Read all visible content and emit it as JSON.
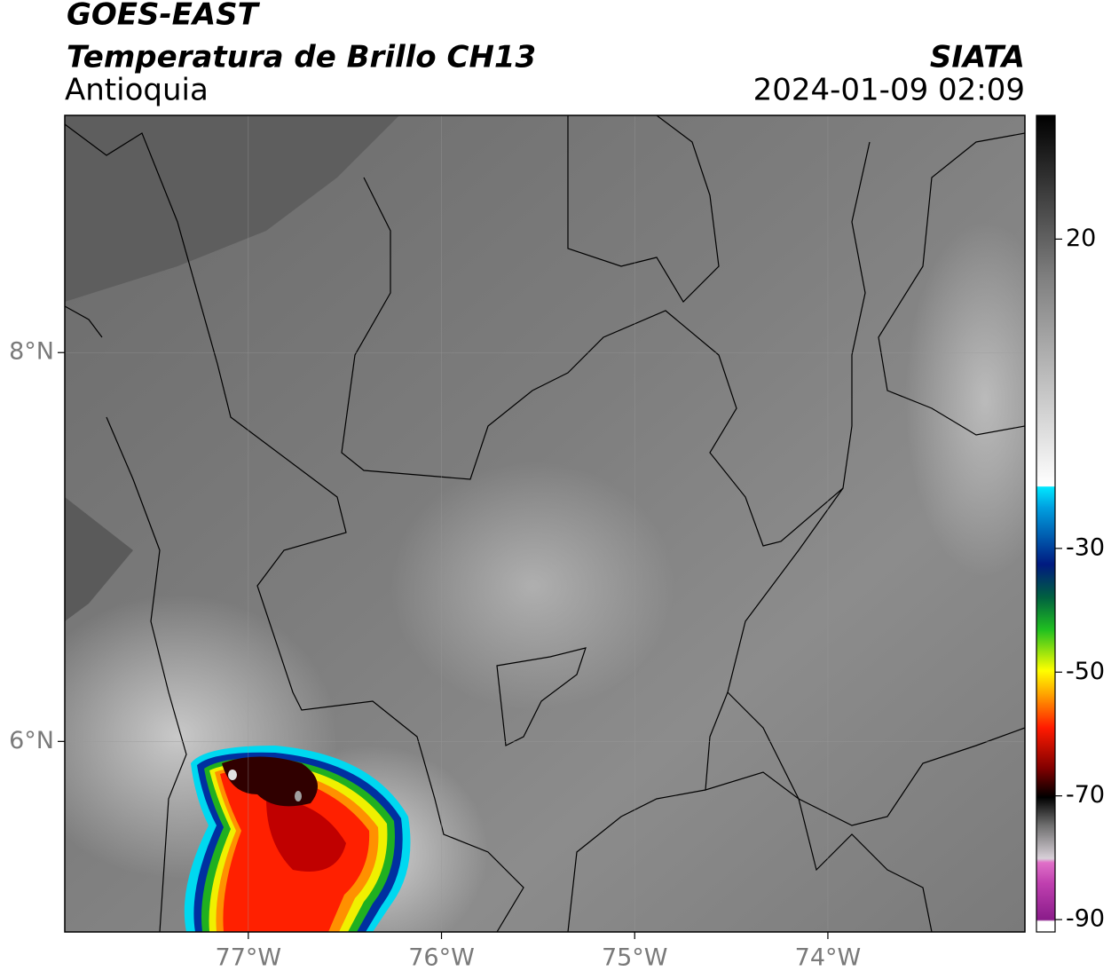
{
  "header": {
    "title": "GOES-EAST",
    "subtitle": "Temperatura de Brillo CH13",
    "region": "Antioquia",
    "source": "SIATA",
    "datetime": "2024-01-09 02:09"
  },
  "map": {
    "lon_range": [
      -77.95,
      -72.98
    ],
    "lat_range": [
      5.02,
      9.22
    ],
    "lon_ticks": [
      {
        "value": -77,
        "label": "77°W"
      },
      {
        "value": -76,
        "label": "76°W"
      },
      {
        "value": -75,
        "label": "75°W"
      },
      {
        "value": -74,
        "label": "74°W"
      }
    ],
    "lat_ticks": [
      {
        "value": 8,
        "label": "8°N"
      },
      {
        "value": 6,
        "label": "6°N"
      }
    ]
  },
  "colorbar": {
    "range": [
      -92,
      40
    ],
    "ticks": [
      20,
      -30,
      -50,
      -70,
      -90
    ]
  }
}
